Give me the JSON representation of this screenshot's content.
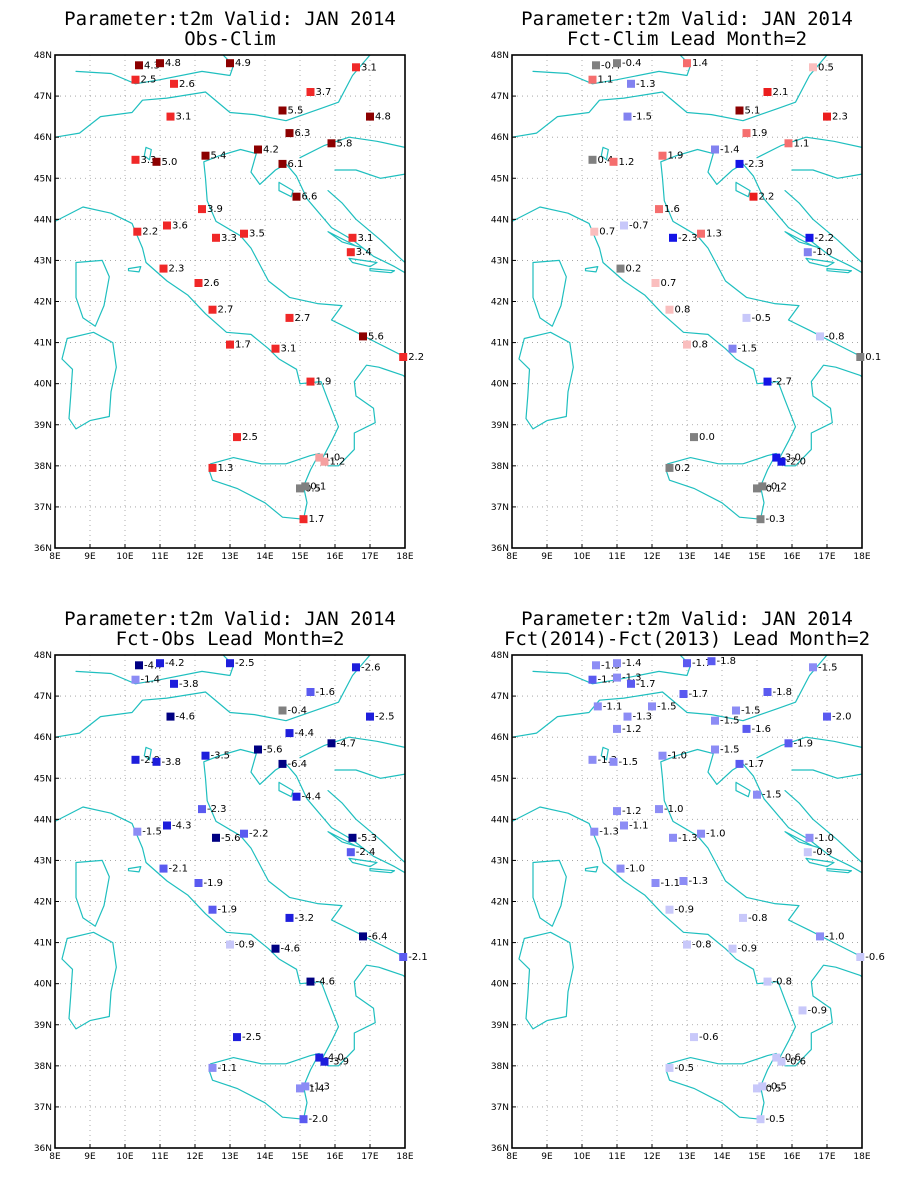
{
  "panels": [
    {
      "title": "Parameter:t2m Valid: JAN 2014",
      "subtitle": "Obs-Clim",
      "scale": "warm",
      "stations": [
        [
          10.4,
          47.75,
          4.3
        ],
        [
          11.0,
          47.8,
          4.8
        ],
        [
          13.0,
          47.8,
          4.9
        ],
        [
          16.6,
          47.7,
          3.1
        ],
        [
          10.3,
          47.4,
          2.5
        ],
        [
          11.4,
          47.3,
          2.6
        ],
        [
          15.3,
          47.1,
          3.7
        ],
        [
          14.5,
          46.65,
          5.5
        ],
        [
          11.3,
          46.5,
          3.1
        ],
        [
          17.0,
          46.5,
          4.8
        ],
        [
          14.7,
          46.1,
          6.3
        ],
        [
          15.9,
          45.85,
          5.8
        ],
        [
          13.8,
          45.7,
          4.2
        ],
        [
          12.3,
          45.55,
          5.4
        ],
        [
          10.3,
          45.45,
          3.3
        ],
        [
          10.9,
          45.4,
          5.0
        ],
        [
          14.5,
          45.35,
          6.1
        ],
        [
          14.9,
          44.55,
          6.6
        ],
        [
          12.2,
          44.25,
          3.9
        ],
        [
          10.35,
          43.7,
          2.2
        ],
        [
          11.2,
          43.85,
          3.6
        ],
        [
          13.4,
          43.65,
          3.5
        ],
        [
          12.6,
          43.55,
          3.3
        ],
        [
          16.5,
          43.55,
          3.1
        ],
        [
          16.45,
          43.2,
          3.4
        ],
        [
          11.1,
          42.8,
          2.3
        ],
        [
          12.1,
          42.45,
          2.6
        ],
        [
          12.5,
          41.8,
          2.7
        ],
        [
          14.7,
          41.6,
          2.7
        ],
        [
          16.8,
          41.15,
          5.6
        ],
        [
          13.0,
          40.95,
          1.7
        ],
        [
          14.3,
          40.85,
          3.1
        ],
        [
          17.95,
          40.65,
          2.2
        ],
        [
          15.3,
          40.05,
          1.9
        ],
        [
          13.2,
          38.7,
          2.5
        ],
        [
          12.5,
          37.95,
          1.3
        ],
        [
          15.55,
          38.2,
          1.0
        ],
        [
          15.7,
          38.1,
          1.2
        ],
        [
          15.0,
          37.45,
          0.5
        ],
        [
          15.15,
          37.5,
          0.1
        ],
        [
          15.1,
          36.7,
          1.7
        ]
      ]
    },
    {
      "title": "Parameter:t2m Valid: JAN 2014",
      "subtitle": "Fct-Clim Lead Month=2",
      "scale": "diverging",
      "stations": [
        [
          10.4,
          47.75,
          -0.4
        ],
        [
          11.0,
          47.8,
          -0.4
        ],
        [
          13.0,
          47.8,
          1.4
        ],
        [
          16.6,
          47.7,
          0.5
        ],
        [
          10.3,
          47.4,
          1.1
        ],
        [
          11.4,
          47.3,
          -1.3
        ],
        [
          15.3,
          47.1,
          2.1
        ],
        [
          14.5,
          46.65,
          5.1
        ],
        [
          11.3,
          46.5,
          -1.5
        ],
        [
          17.0,
          46.5,
          2.3
        ],
        [
          14.7,
          46.1,
          1.9
        ],
        [
          15.9,
          45.85,
          1.1
        ],
        [
          13.8,
          45.7,
          -1.4
        ],
        [
          12.3,
          45.55,
          1.9
        ],
        [
          10.3,
          45.45,
          0.4
        ],
        [
          10.9,
          45.4,
          1.2
        ],
        [
          14.5,
          45.35,
          -2.3
        ],
        [
          14.9,
          44.55,
          2.2
        ],
        [
          12.2,
          44.25,
          1.6
        ],
        [
          10.35,
          43.7,
          0.7
        ],
        [
          11.2,
          43.85,
          -0.7
        ],
        [
          13.4,
          43.65,
          1.3
        ],
        [
          12.6,
          43.55,
          -2.3
        ],
        [
          16.5,
          43.55,
          -2.2
        ],
        [
          16.45,
          43.2,
          -1.0
        ],
        [
          11.1,
          42.8,
          0.2
        ],
        [
          12.1,
          42.45,
          0.7
        ],
        [
          12.5,
          41.8,
          0.8
        ],
        [
          14.7,
          41.6,
          -0.5
        ],
        [
          16.8,
          41.15,
          -0.8
        ],
        [
          13.0,
          40.95,
          0.8
        ],
        [
          14.3,
          40.85,
          -1.5
        ],
        [
          17.95,
          40.65,
          0.1
        ],
        [
          15.3,
          40.05,
          -2.7
        ],
        [
          13.2,
          38.7,
          0.0
        ],
        [
          12.5,
          37.95,
          0.2
        ],
        [
          15.55,
          38.2,
          -3.0
        ],
        [
          15.7,
          38.1,
          -2.0
        ],
        [
          15.0,
          37.45,
          -0.1
        ],
        [
          15.15,
          37.5,
          -0.2
        ],
        [
          15.1,
          36.7,
          -0.3
        ]
      ]
    },
    {
      "title": "Parameter:t2m Valid: JAN 2014",
      "subtitle": "Fct-Obs Lead Month=2",
      "scale": "cold",
      "stations": [
        [
          10.4,
          47.75,
          -4.7
        ],
        [
          11.0,
          47.8,
          -4.2
        ],
        [
          13.0,
          47.8,
          -2.5
        ],
        [
          16.6,
          47.7,
          -2.6
        ],
        [
          10.3,
          47.4,
          -1.4
        ],
        [
          11.4,
          47.3,
          -3.8
        ],
        [
          15.3,
          47.1,
          -1.6
        ],
        [
          14.5,
          46.65,
          -0.4
        ],
        [
          11.3,
          46.5,
          -4.6
        ],
        [
          17.0,
          46.5,
          -2.5
        ],
        [
          14.7,
          46.1,
          -4.4
        ],
        [
          15.9,
          45.85,
          -4.7
        ],
        [
          13.8,
          45.7,
          -5.6
        ],
        [
          12.3,
          45.55,
          -3.5
        ],
        [
          10.3,
          45.45,
          -2.9
        ],
        [
          10.9,
          45.4,
          -3.8
        ],
        [
          14.5,
          45.35,
          -6.4
        ],
        [
          14.9,
          44.55,
          -4.4
        ],
        [
          12.2,
          44.25,
          -2.3
        ],
        [
          10.35,
          43.7,
          -1.5
        ],
        [
          11.2,
          43.85,
          -4.3
        ],
        [
          13.4,
          43.65,
          -2.2
        ],
        [
          12.6,
          43.55,
          -5.6
        ],
        [
          16.5,
          43.55,
          -5.3
        ],
        [
          16.45,
          43.2,
          -2.4
        ],
        [
          11.1,
          42.8,
          -2.1
        ],
        [
          12.1,
          42.45,
          -1.9
        ],
        [
          12.5,
          41.8,
          -1.9
        ],
        [
          14.7,
          41.6,
          -3.2
        ],
        [
          16.8,
          41.15,
          -6.4
        ],
        [
          13.0,
          40.95,
          -0.9
        ],
        [
          14.3,
          40.85,
          -4.6
        ],
        [
          17.95,
          40.65,
          -2.1
        ],
        [
          15.3,
          40.05,
          -4.6
        ],
        [
          13.2,
          38.7,
          -2.5
        ],
        [
          12.5,
          37.95,
          -1.1
        ],
        [
          15.55,
          38.2,
          -4.0
        ],
        [
          15.7,
          38.1,
          -3.9
        ],
        [
          15.0,
          37.45,
          -1.4
        ],
        [
          15.15,
          37.5,
          -1.3
        ],
        [
          15.1,
          36.7,
          -2.0
        ]
      ]
    },
    {
      "title": "Parameter:t2m Valid: JAN 2014",
      "subtitle": "Fct(2014)-Fct(2013) Lead Month=2",
      "scale": "cold",
      "stations": [
        [
          10.4,
          47.75,
          -1.5
        ],
        [
          11.0,
          47.8,
          -1.4
        ],
        [
          13.0,
          47.8,
          -1.7
        ],
        [
          13.7,
          47.85,
          -1.8
        ],
        [
          16.6,
          47.7,
          -1.5
        ],
        [
          10.3,
          47.4,
          -1.7
        ],
        [
          11.0,
          47.45,
          -1.3
        ],
        [
          11.4,
          47.3,
          -1.7
        ],
        [
          12.9,
          47.05,
          -1.7
        ],
        [
          15.3,
          47.1,
          -1.8
        ],
        [
          10.45,
          46.75,
          -1.1
        ],
        [
          12.0,
          46.75,
          -1.5
        ],
        [
          14.4,
          46.65,
          -1.5
        ],
        [
          17.0,
          46.5,
          -2.0
        ],
        [
          11.3,
          46.5,
          -1.3
        ],
        [
          13.8,
          46.4,
          -1.5
        ],
        [
          14.7,
          46.2,
          -1.6
        ],
        [
          11.0,
          46.2,
          -1.2
        ],
        [
          15.9,
          45.85,
          -1.9
        ],
        [
          13.8,
          45.7,
          -1.5
        ],
        [
          12.3,
          45.55,
          -1.0
        ],
        [
          10.3,
          45.45,
          -1.3
        ],
        [
          10.9,
          45.4,
          -1.5
        ],
        [
          14.5,
          45.35,
          -1.7
        ],
        [
          15.0,
          44.6,
          -1.5
        ],
        [
          11.0,
          44.2,
          -1.2
        ],
        [
          12.2,
          44.25,
          -1.0
        ],
        [
          10.35,
          43.7,
          -1.3
        ],
        [
          11.2,
          43.85,
          -1.1
        ],
        [
          13.4,
          43.65,
          -1.0
        ],
        [
          12.6,
          43.55,
          -1.3
        ],
        [
          16.5,
          43.55,
          -1.0
        ],
        [
          16.45,
          43.2,
          -0.9
        ],
        [
          11.1,
          42.8,
          -1.0
        ],
        [
          12.1,
          42.45,
          -1.1
        ],
        [
          12.9,
          42.5,
          -1.3
        ],
        [
          12.5,
          41.8,
          -0.9
        ],
        [
          14.6,
          41.6,
          -0.8
        ],
        [
          16.8,
          41.15,
          -1.0
        ],
        [
          13.0,
          40.95,
          -0.8
        ],
        [
          14.3,
          40.85,
          -0.9
        ],
        [
          17.95,
          40.65,
          -0.6
        ],
        [
          15.3,
          40.05,
          -0.8
        ],
        [
          16.3,
          39.35,
          -0.9
        ],
        [
          13.2,
          38.7,
          -0.6
        ],
        [
          12.5,
          37.95,
          -0.5
        ],
        [
          15.55,
          38.2,
          -0.6
        ],
        [
          15.7,
          38.1,
          -0.6
        ],
        [
          15.0,
          37.45,
          -0.5
        ],
        [
          15.15,
          37.5,
          -0.5
        ],
        [
          15.1,
          36.7,
          -0.5
        ]
      ]
    }
  ],
  "axes": {
    "lon_min": 8,
    "lon_max": 18,
    "lat_min": 36,
    "lat_max": 48,
    "x_ticks": [
      "8E",
      "9E",
      "10E",
      "11E",
      "12E",
      "13E",
      "14E",
      "15E",
      "16E",
      "17E",
      "18E"
    ],
    "y_ticks": [
      "36N",
      "37N",
      "38N",
      "39N",
      "40N",
      "41N",
      "42N",
      "43N",
      "44N",
      "45N",
      "46N",
      "47N",
      "48N"
    ]
  }
}
